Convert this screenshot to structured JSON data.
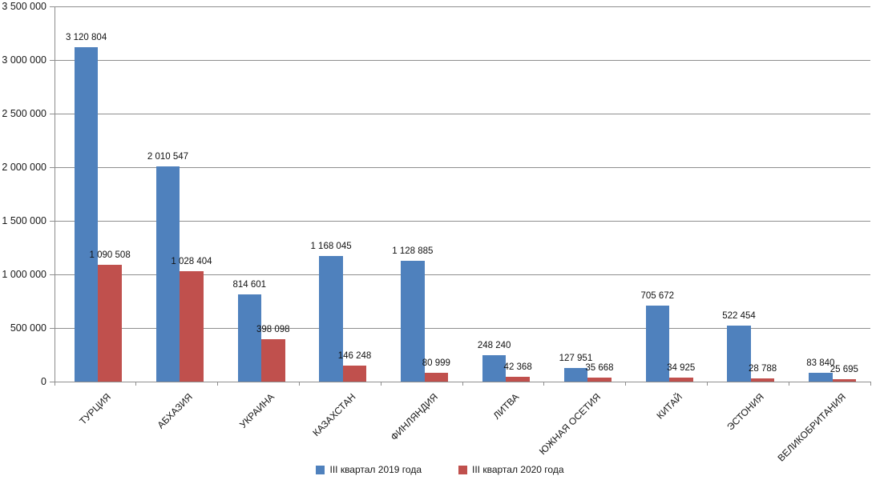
{
  "chart": {
    "background": "#FFFFFF",
    "grid_color": "#8E8E8E",
    "axis_color": "#8E8E8E",
    "text_color": "#171717"
  },
  "chart_data": {
    "type": "bar",
    "title": "",
    "xlabel": "",
    "ylabel": "",
    "grid": true,
    "legend_position": "bottom",
    "categories": [
      "ТУРЦИЯ",
      "АБХАЗИЯ",
      "УКРАИНА",
      "КАЗАХСТАН",
      "ФИНЛЯНДИЯ",
      "ЛИТВА",
      "ЮЖНАЯ ОСЕТИЯ",
      "КИТАЙ",
      "ЭСТОНИЯ",
      "ВЕЛИКОБРИТАНИЯ"
    ],
    "series": [
      {
        "name": "III квартал 2019 года",
        "color": "#4F81BD",
        "values": [
          3120804,
          2010547,
          814601,
          1168045,
          1128885,
          248240,
          127951,
          705672,
          522454,
          83840
        ],
        "value_labels": [
          "3 120 804",
          "2 010 547",
          "814 601",
          "1 168 045",
          "1 128 885",
          "248 240",
          "127 951",
          "705 672",
          "522 454",
          "83 840"
        ]
      },
      {
        "name": "III квартал 2020 года",
        "color": "#C0504D",
        "values": [
          1090508,
          1028404,
          398098,
          146248,
          80999,
          42368,
          35668,
          34925,
          28788,
          25695
        ],
        "value_labels": [
          "1 090 508",
          "1 028 404",
          "398 098",
          "146 248",
          "80 999",
          "42 368",
          "35 668",
          "34 925",
          "28 788",
          "25 695"
        ]
      }
    ],
    "y_axis": {
      "min": 0,
      "max": 3500000,
      "step": 500000,
      "tick_labels": [
        "0",
        "500 000",
        "1 000 000",
        "1 500 000",
        "2 000 000",
        "2 500 000",
        "3 000 000",
        "3 500 000"
      ]
    }
  }
}
